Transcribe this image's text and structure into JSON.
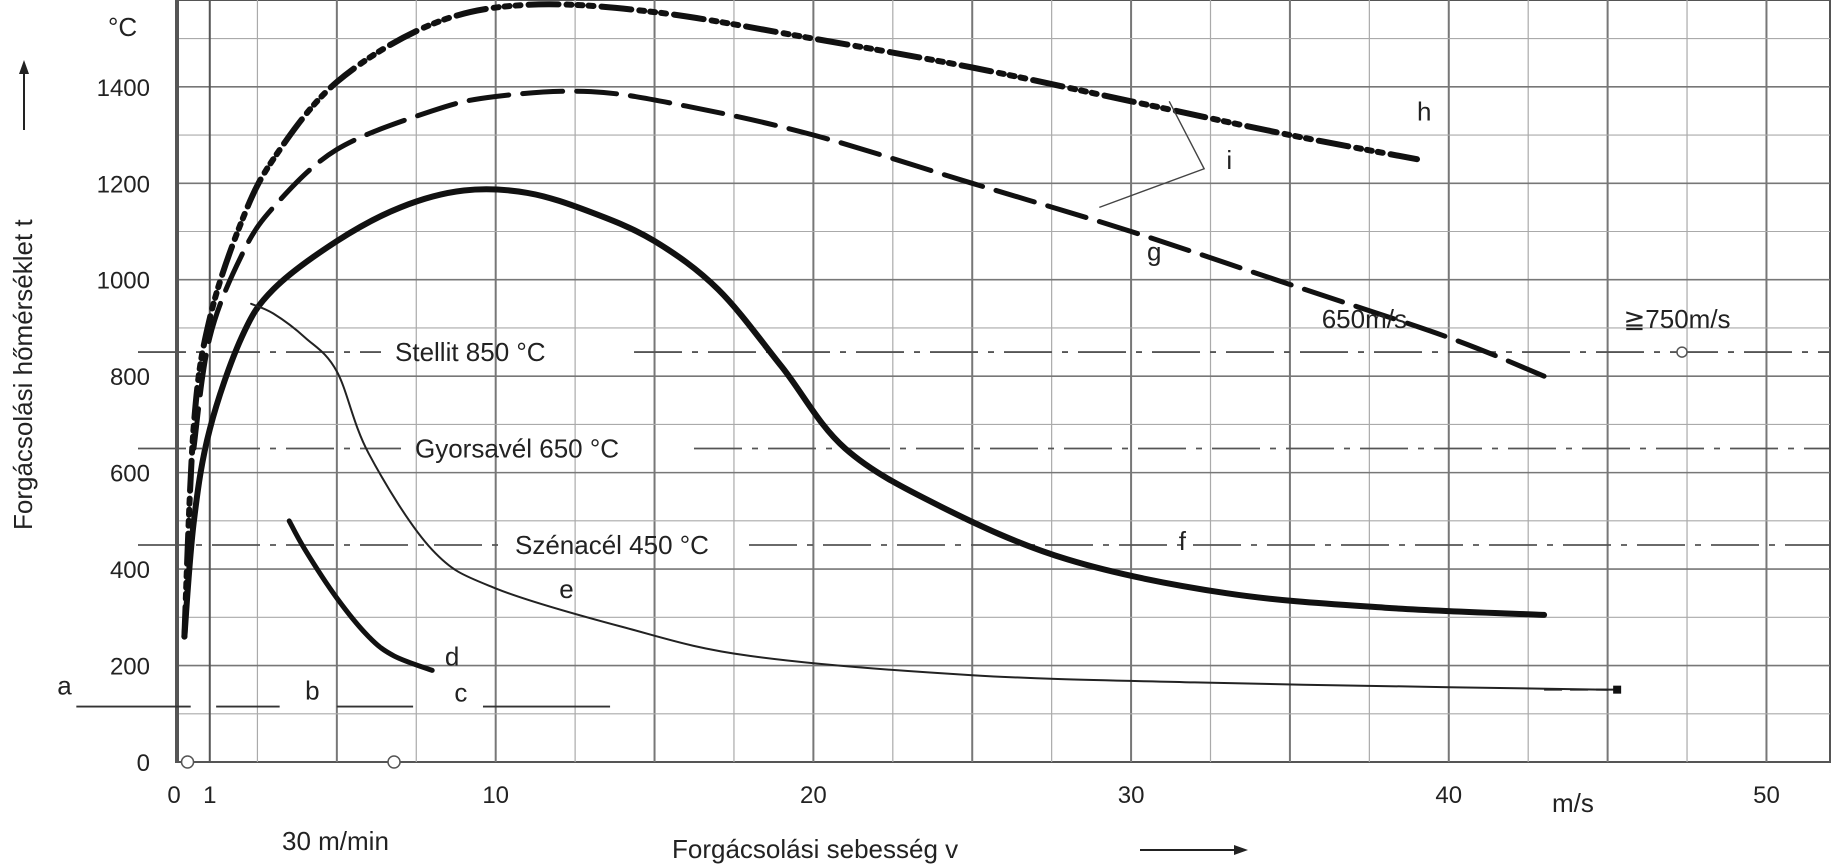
{
  "chart_data": {
    "type": "line",
    "xlabel": "Forgácsolási sebesség   v",
    "ylabel": "Forgácsolási hőmérséklet   t",
    "x_unit": "m/s",
    "y_unit": "°C",
    "x_extra_label": "30 m/min",
    "xlim": [
      0,
      52
    ],
    "ylim": [
      0,
      1580
    ],
    "x_ticks": [
      "0",
      "1",
      "10",
      "20",
      "30",
      "40",
      "50"
    ],
    "y_ticks": [
      "0",
      "200",
      "400",
      "600",
      "800",
      "1000",
      "1200",
      "1400"
    ],
    "grid": true,
    "reference_lines": [
      {
        "label": "Stellit 850 °C",
        "y": 850
      },
      {
        "label": "Gyorsavél 650 °C",
        "y": 650
      },
      {
        "label": "Szénacél  450 °C",
        "y": 450
      }
    ],
    "series": [
      {
        "name": "h",
        "x": [
          0.2,
          0.5,
          1,
          2,
          3,
          5,
          8,
          11,
          15,
          20,
          25,
          30,
          35,
          39
        ],
        "y": [
          260,
          700,
          920,
          1120,
          1250,
          1410,
          1530,
          1570,
          1555,
          1500,
          1440,
          1370,
          1300,
          1250
        ]
      },
      {
        "name": "g",
        "x": [
          0.5,
          1,
          2,
          3,
          5,
          8,
          10,
          13,
          16,
          20,
          25,
          30,
          35,
          40,
          43
        ],
        "y": [
          650,
          880,
          1050,
          1150,
          1270,
          1350,
          1380,
          1390,
          1360,
          1300,
          1200,
          1100,
          990,
          880,
          800
        ]
      },
      {
        "name": "f",
        "x": [
          0.2,
          0.5,
          1,
          2,
          3,
          5,
          7,
          9,
          11,
          13,
          15,
          17,
          19,
          21,
          24,
          28,
          33,
          38,
          43
        ],
        "y": [
          260,
          500,
          690,
          880,
          980,
          1080,
          1150,
          1185,
          1180,
          1140,
          1080,
          980,
          820,
          650,
          530,
          420,
          350,
          320,
          305
        ]
      },
      {
        "name": "e",
        "x": [
          2.3,
          3,
          4,
          5,
          6,
          8,
          10,
          14,
          18,
          25,
          32,
          40,
          45
        ],
        "y": [
          950,
          930,
          880,
          810,
          640,
          440,
          360,
          280,
          220,
          180,
          165,
          155,
          150
        ]
      },
      {
        "name": "d",
        "x": [
          3.5,
          4,
          5,
          6,
          6.8,
          8
        ],
        "y": [
          500,
          440,
          340,
          260,
          220,
          190
        ]
      }
    ],
    "annotations": [
      {
        "text": "h",
        "x": 39,
        "y": 1330
      },
      {
        "text": "i",
        "x": 33,
        "y": 1230
      },
      {
        "text": "g",
        "x": 30.5,
        "y": 1040
      },
      {
        "text": "f",
        "x": 31.5,
        "y": 440
      },
      {
        "text": "e",
        "x": 12,
        "y": 340
      },
      {
        "text": "d",
        "x": 8.4,
        "y": 200
      },
      {
        "text": "a",
        "x": -3.8,
        "y": 140
      },
      {
        "text": "b",
        "x": 4,
        "y": 130
      },
      {
        "text": "c",
        "x": 8.7,
        "y": 125
      },
      {
        "text": "650m/s",
        "x": 36,
        "y": 900
      },
      {
        "text": "≧750m/s",
        "x": 45.5,
        "y": 900
      }
    ]
  }
}
